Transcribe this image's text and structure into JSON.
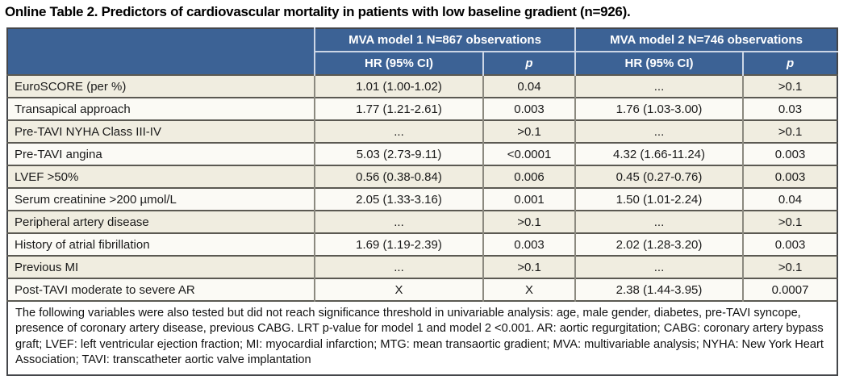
{
  "page": {
    "title": "Online Table 2. Predictors of cardiovascular mortality in patients with low baseline gradient (n=926)."
  },
  "table": {
    "model_headers": [
      "MVA model 1 N=867 observations",
      "MVA model 2 N=746 observations"
    ],
    "sub_headers": {
      "hr1": "HR (95% CI)",
      "p1": "p",
      "hr2": "HR (95% CI)",
      "p2": "p"
    },
    "rows": [
      {
        "variable": "EuroSCORE (per %)",
        "m1_hr": "1.01 (1.00-1.02)",
        "m1_p": "0.04",
        "m2_hr": "...",
        "m2_p": ">0.1"
      },
      {
        "variable": "Transapical approach",
        "m1_hr": "1.77 (1.21-2.61)",
        "m1_p": "0.003",
        "m2_hr": "1.76 (1.03-3.00)",
        "m2_p": "0.03"
      },
      {
        "variable": "Pre-TAVI NYHA Class III-IV",
        "m1_hr": "...",
        "m1_p": ">0.1",
        "m2_hr": "...",
        "m2_p": ">0.1"
      },
      {
        "variable": "Pre-TAVI angina",
        "m1_hr": "5.03 (2.73-9.11)",
        "m1_p": "<0.0001",
        "m2_hr": "4.32 (1.66-11.24)",
        "m2_p": "0.003"
      },
      {
        "variable": "LVEF >50%",
        "m1_hr": "0.56 (0.38-0.84)",
        "m1_p": "0.006",
        "m2_hr": "0.45 (0.27-0.76)",
        "m2_p": "0.003"
      },
      {
        "variable": "Serum creatinine >200 µmol/L",
        "m1_hr": "2.05 (1.33-3.16)",
        "m1_p": "0.001",
        "m2_hr": "1.50 (1.01-2.24)",
        "m2_p": "0.04"
      },
      {
        "variable": "Peripheral artery disease",
        "m1_hr": "...",
        "m1_p": ">0.1",
        "m2_hr": "...",
        "m2_p": ">0.1"
      },
      {
        "variable": "History of atrial fibrillation",
        "m1_hr": "1.69 (1.19-2.39)",
        "m1_p": "0.003",
        "m2_hr": "2.02 (1.28-3.20)",
        "m2_p": "0.003"
      },
      {
        "variable": "Previous MI",
        "m1_hr": "...",
        "m1_p": ">0.1",
        "m2_hr": "...",
        "m2_p": ">0.1"
      },
      {
        "variable": "Post-TAVI moderate to severe AR",
        "m1_hr": "X",
        "m1_p": "X",
        "m2_hr": "2.38 (1.44-3.95)",
        "m2_p": "0.0007"
      }
    ],
    "footnote": "The following variables were also tested but did not reach significance threshold in univariable analysis: age, male gender, diabetes, pre-TAVI syncope, presence of coronary artery disease, previous CABG. LRT p-value for model 1 and model 2 <0.001. AR: aortic regurgitation; CABG: coronary artery bypass graft; LVEF: left ventricular ejection fraction; MI: myocardial infarction; MTG: mean transaortic gradient; MVA: multivariable analysis; NYHA: New York Heart Association; TAVI: transcatheter aortic valve implantation"
  },
  "colors": {
    "header_bg": "#3c6295",
    "header_text": "#ffffff",
    "header_divider": "#ccd6e6",
    "row_beige": "#f0ede0",
    "row_white": "#fbfaf5",
    "border_dark": "#5b5952",
    "border_mid": "#8b897f"
  }
}
